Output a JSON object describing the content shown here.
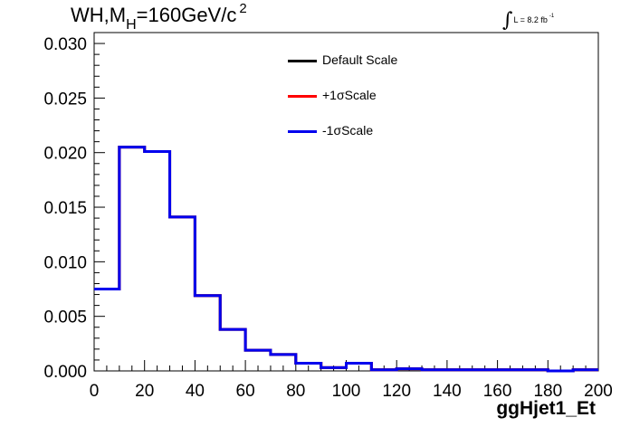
{
  "title": {
    "main": "WH,M",
    "sub": "H",
    "rest": "=160GeV/c",
    "sup": "2"
  },
  "luminosity": {
    "text": "L = 8.2 fb",
    "sup": "-1",
    "integral": "∫"
  },
  "chart_data": {
    "type": "histogram",
    "xlabel": "ggHjet1_Et",
    "ylabel": "",
    "xlim": [
      0,
      200
    ],
    "ylim": [
      0,
      0.031
    ],
    "x_ticks": [
      0,
      20,
      40,
      60,
      80,
      100,
      120,
      140,
      160,
      180,
      200
    ],
    "x_tick_labels": [
      "0",
      "20",
      "40",
      "60",
      "80",
      "100",
      "120",
      "140",
      "160",
      "180",
      "200"
    ],
    "y_ticks": [
      0,
      0.005,
      0.01,
      0.015,
      0.02,
      0.025,
      0.03
    ],
    "y_tick_labels": [
      "0.000",
      "0.005",
      "0.010",
      "0.015",
      "0.020",
      "0.025",
      "0.030"
    ],
    "bin_edges": [
      0,
      10,
      20,
      30,
      40,
      50,
      60,
      70,
      80,
      90,
      100,
      110,
      120,
      130,
      140,
      150,
      160,
      170,
      180,
      190,
      200
    ],
    "series": [
      {
        "name": "Default Scale",
        "color": "#000000",
        "values": [
          0.0075,
          0.0205,
          0.0201,
          0.0141,
          0.0069,
          0.0038,
          0.0019,
          0.0015,
          0.0007,
          0.0003,
          0.0007,
          0.0001,
          0.0002,
          0.0001,
          0.0001,
          0.0001,
          0.0001,
          0.0001,
          0.0,
          0.0001
        ]
      },
      {
        "name": "+1σScale",
        "color": "#ff0000",
        "values": [
          0.0075,
          0.0205,
          0.0201,
          0.0141,
          0.0069,
          0.0038,
          0.0019,
          0.0015,
          0.0007,
          0.0003,
          0.0007,
          0.0001,
          0.0002,
          0.0001,
          0.0001,
          0.0001,
          0.0001,
          0.0001,
          0.0,
          0.0001
        ]
      },
      {
        "name": "-1σScale",
        "color": "#0000ee",
        "values": [
          0.0075,
          0.0205,
          0.0201,
          0.0141,
          0.0069,
          0.0038,
          0.0019,
          0.0015,
          0.0007,
          0.0003,
          0.0007,
          0.0001,
          0.0002,
          0.0001,
          0.0001,
          0.0001,
          0.0001,
          0.0001,
          0.0,
          0.0001
        ]
      }
    ],
    "legend": "top-center",
    "grid": false
  }
}
